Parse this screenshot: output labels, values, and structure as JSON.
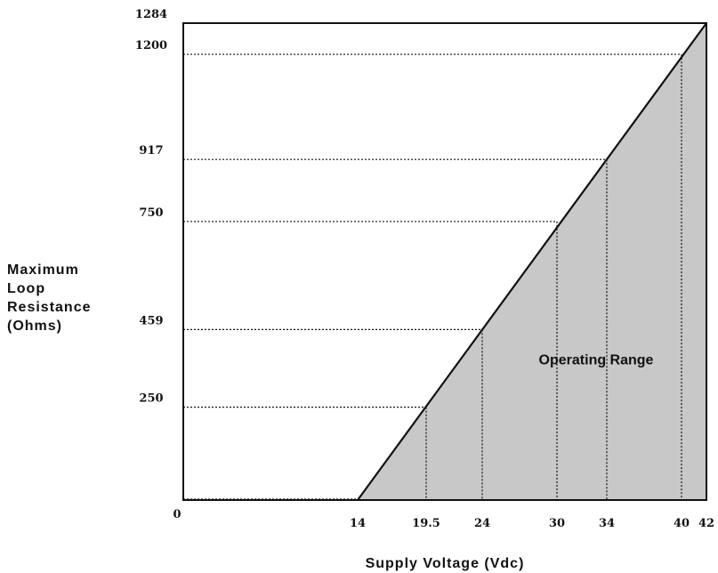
{
  "chart_data": {
    "type": "area",
    "xlabel": "Supply Voltage (Vdc)",
    "ylabel_lines": [
      "Maximum",
      "Loop",
      "Resistance",
      "(Ohms)"
    ],
    "xlim": [
      0,
      42
    ],
    "ylim": [
      0,
      1284
    ],
    "x_ticks": [
      {
        "value": 0,
        "label": "0"
      },
      {
        "value": 14,
        "label": "14"
      },
      {
        "value": 19.5,
        "label": "19.5"
      },
      {
        "value": 24,
        "label": "24"
      },
      {
        "value": 30,
        "label": "30"
      },
      {
        "value": 34,
        "label": "34"
      },
      {
        "value": 40,
        "label": "40"
      },
      {
        "value": 42,
        "label": "42"
      }
    ],
    "y_ticks": [
      {
        "value": 250,
        "label": "250"
      },
      {
        "value": 459,
        "label": "459"
      },
      {
        "value": 750,
        "label": "750"
      },
      {
        "value": 917,
        "label": "917"
      },
      {
        "value": 1200,
        "label": "1200"
      },
      {
        "value": 1284,
        "label": "1284"
      }
    ],
    "series": [
      {
        "x": [
          14,
          42
        ],
        "y": [
          0,
          1284
        ],
        "fill": "#c8c8c8",
        "line_color": "#111111"
      }
    ],
    "reference_points": [
      {
        "x": 19.5,
        "y": 250
      },
      {
        "x": 24,
        "y": 459
      },
      {
        "x": 30,
        "y": 750
      },
      {
        "x": 34,
        "y": 917
      },
      {
        "x": 40,
        "y": 1200
      }
    ],
    "annotation": {
      "text": "Operating Range",
      "x": 31,
      "y": 380
    },
    "grid": false
  }
}
